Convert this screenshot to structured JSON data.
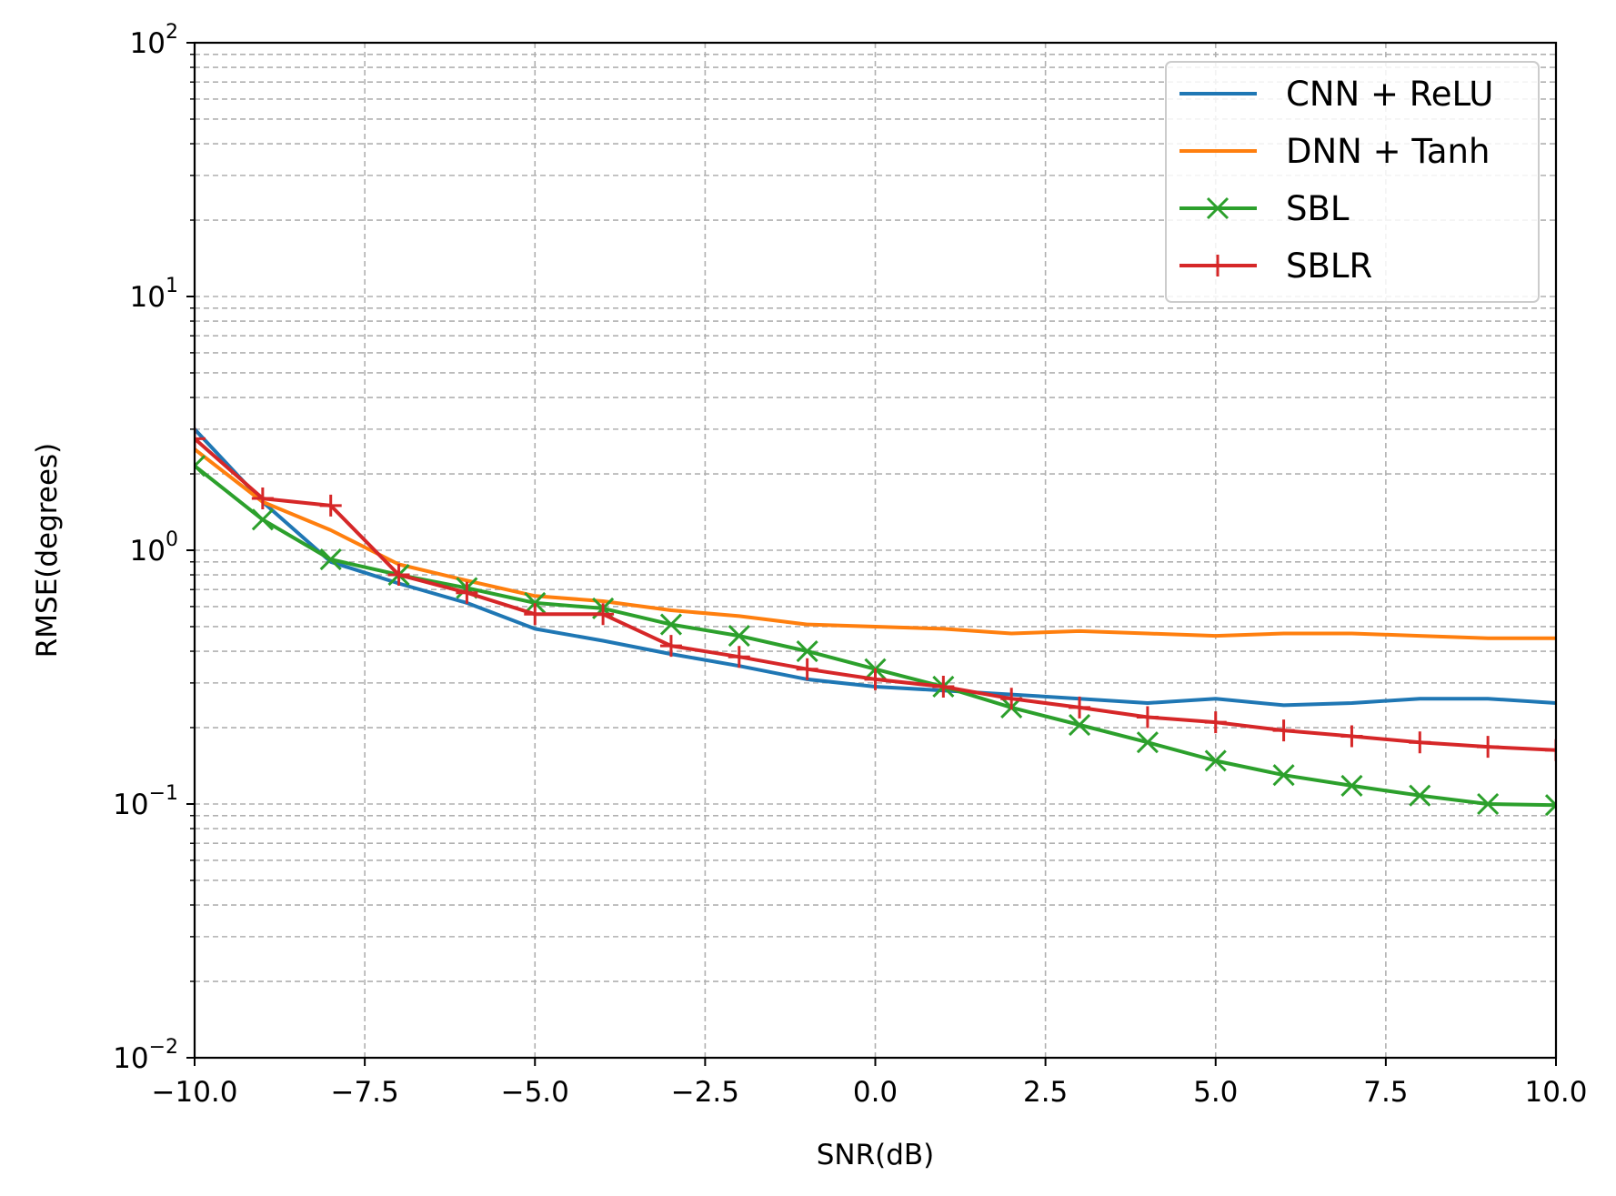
{
  "chart_data": {
    "type": "line",
    "title": "",
    "xlabel": "SNR(dB)",
    "ylabel": "RMSE(degrees)",
    "xlim": [
      -10,
      10
    ],
    "ylim": [
      0.01,
      100
    ],
    "yscale": "log",
    "grid": true,
    "legend_position": "top-right",
    "x_ticks": [
      "−10.0",
      "−7.5",
      "−5.0",
      "−2.5",
      "0.0",
      "2.5",
      "5.0",
      "7.5",
      "10.0"
    ],
    "y_ticks": [
      {
        "base": "10",
        "exp": "2"
      },
      {
        "base": "10",
        "exp": "1"
      },
      {
        "base": "10",
        "exp": "0"
      },
      {
        "base": "10",
        "exp": "−1"
      },
      {
        "base": "10",
        "exp": "−2"
      }
    ],
    "x": [
      -10,
      -9,
      -8,
      -7,
      -6,
      -5,
      -4,
      -3,
      -2,
      -1,
      0,
      1,
      2,
      3,
      4,
      5,
      6,
      7,
      8,
      9,
      10
    ],
    "series": [
      {
        "name": "CNN + ReLU",
        "color": "#1f77b4",
        "marker": "none",
        "values": [
          3.0,
          1.55,
          0.9,
          0.74,
          0.62,
          0.49,
          0.44,
          0.39,
          0.35,
          0.31,
          0.29,
          0.28,
          0.27,
          0.26,
          0.25,
          0.26,
          0.245,
          0.25,
          0.26,
          0.26,
          0.25
        ]
      },
      {
        "name": "DNN + Tanh",
        "color": "#ff7f0e",
        "marker": "none",
        "values": [
          2.5,
          1.55,
          1.2,
          0.88,
          0.76,
          0.66,
          0.63,
          0.58,
          0.55,
          0.51,
          0.5,
          0.49,
          0.47,
          0.48,
          0.47,
          0.46,
          0.47,
          0.47,
          0.46,
          0.45,
          0.45
        ]
      },
      {
        "name": "SBL",
        "color": "#2ca02c",
        "marker": "x",
        "values": [
          2.15,
          1.32,
          0.92,
          0.8,
          0.71,
          0.62,
          0.59,
          0.51,
          0.46,
          0.4,
          0.34,
          0.29,
          0.24,
          0.205,
          0.175,
          0.148,
          0.13,
          0.118,
          0.108,
          0.1,
          0.099
        ]
      },
      {
        "name": "SBLR",
        "color": "#d62728",
        "marker": "+",
        "values": [
          2.75,
          1.6,
          1.5,
          0.8,
          0.68,
          0.56,
          0.56,
          0.42,
          0.38,
          0.34,
          0.31,
          0.29,
          0.26,
          0.24,
          0.22,
          0.21,
          0.195,
          0.185,
          0.175,
          0.168,
          0.163
        ]
      }
    ]
  }
}
